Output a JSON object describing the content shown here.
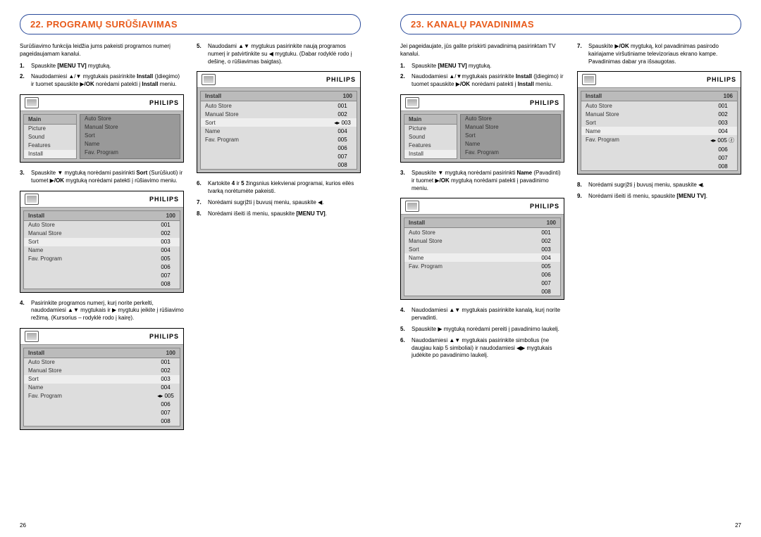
{
  "brand": "PHILIPS",
  "left": {
    "title": "22. PROGRAMŲ SURŪŠIAVIMAS",
    "intro": "Surūšiavimo funkcija leidžia jums pakeisti programos numerį pageidaujamam kanalui.",
    "steps": [
      {
        "n": "1.",
        "t": "Spauskite <b>[MENU TV]</b> mygtuką."
      },
      {
        "n": "2.",
        "t": "Naudodamiesi ▲/▼ mygtukais pasirinkite <b>Install</b> (Įdiegimo) ir tuomet spauskite ▶<b>/OK</b> norėdami patekti į <b>Install</b> meniu."
      },
      {
        "n": "3.",
        "t": "Spauskite ▼ mygtuką norėdami pasirinkti <b>Sort</b> (Surūšiuoti) ir tuomet ▶<b>/OK</b> mygtuką norėdami patekti į rūšiavimo meniu."
      },
      {
        "n": "4.",
        "t": "Pasirinkite programos numerį, kurį norite perkelti, naudodamiesi ▲▼ mygtukais ir ▶ mygtuku įeikite į rūšiavimo režimą. (Kursorius – rodyklė rodo į kairę)."
      },
      {
        "n": "5.",
        "t": "Naudodami ▲▼ mygtukus pasirinkite naują programos numerį ir patvirtinkite su ◀ mygtuku. (Dabar rodyklė rodo į dešinę, o rūšiavimas baigtas)."
      },
      {
        "n": "6.",
        "t": "Kartokite <b>4</b> ir <b>5</b> žingsnius kiekvienai programai, kurios eilės tvarką norėtumėte pakeisti."
      },
      {
        "n": "7.",
        "t": "Norėdami sugrįžti į buvusį meniu, spauskite ◀."
      },
      {
        "n": "8.",
        "t": "Norėdami išeiti iš meniu, spauskite <b>[MENU TV]</b>."
      }
    ],
    "menuA": {
      "header": "Main",
      "ch": "",
      "left": [
        "Picture",
        "Sound",
        "Features",
        "Install"
      ],
      "sel": 3,
      "right": [
        "Auto Store",
        "Manual Store",
        "Sort",
        "Name",
        "Fav. Program"
      ]
    },
    "menuB": {
      "header": "Install",
      "ch": "100",
      "rows": [
        [
          "Auto Store",
          "001"
        ],
        [
          "Manual Store",
          "002"
        ],
        [
          "Sort",
          "003"
        ],
        [
          "Name",
          "004"
        ],
        [
          "Fav. Program",
          "005"
        ],
        [
          "",
          "006"
        ],
        [
          "",
          "007"
        ],
        [
          "",
          "008"
        ]
      ],
      "sel": 2
    },
    "menuC": {
      "header": "Install",
      "ch": "100",
      "rows": [
        [
          "Auto Store",
          "001"
        ],
        [
          "Manual Store",
          "002"
        ],
        [
          "Sort",
          "003"
        ],
        [
          "Name",
          "004"
        ],
        [
          "Fav. Program",
          "◂▸ 005"
        ],
        [
          "",
          "006"
        ],
        [
          "",
          "007"
        ],
        [
          "",
          "008"
        ]
      ],
      "sel": 2
    },
    "menuD": {
      "header": "Install",
      "ch": "100",
      "rows": [
        [
          "Auto Store",
          "001"
        ],
        [
          "Manual Store",
          "002"
        ],
        [
          "Sort",
          "◂▸ 003"
        ],
        [
          "Name",
          "004"
        ],
        [
          "Fav. Program",
          "005"
        ],
        [
          "",
          "006"
        ],
        [
          "",
          "007"
        ],
        [
          "",
          "008"
        ]
      ],
      "sel": 2
    },
    "pageNum": "26"
  },
  "right": {
    "title": "23. KANALŲ PAVADINIMAS",
    "intro": "Jei pageidaujate, jūs galite priskirti pavadinimą pasirinktam TV kanalui.",
    "steps": [
      {
        "n": "1.",
        "t": "Spauskite <b>[MENU TV]</b> mygtuką."
      },
      {
        "n": "2.",
        "t": "Naudodamiesi ▲/▼mygtukais pasirinkite <b>Install</b> (Įdiegimo) ir tuomet spauskite ▶<b>/OK</b> norėdami patekti į <b>Install</b> meniu."
      },
      {
        "n": "3.",
        "t": "Spauskite ▼ mygtuką norėdami pasirinkti <b>Name</b> (Pavadinti) ir tuomet ▶<b>/OK</b> mygtuką norėdami patekti į pavadinimo meniu."
      },
      {
        "n": "4.",
        "t": "Naudodamiesi ▲▼ mygtukais pasirinkite kanalą, kurį norite pervadinti."
      },
      {
        "n": "5.",
        "t": "Spauskite ▶ mygtuką norėdami pereiti į pavadinimo laukelį."
      },
      {
        "n": "6.",
        "t": "Naudodamiesi ▲▼ mygtukais pasirinkite simbolius (ne daugiau kaip 5 simboliai) ir naudodamiesi ◀▶ mygtukais judėkite po pavadinimo laukelį."
      },
      {
        "n": "7.",
        "t": "Spauskite ▶<b>/OK</b> mygtuką, kol pavadinimas pasirodo kairiajame viršutiniame televizoriaus ekrano kampe. Pavadinimas dabar yra išsaugotas."
      },
      {
        "n": "8.",
        "t": "Norėdami sugrįžti į buvusį meniu, spauskite ◀."
      },
      {
        "n": "9.",
        "t": "Norėdami išeiti iš meniu, spauskite <b>[MENU TV]</b>."
      }
    ],
    "menuA": {
      "header": "Main",
      "ch": "",
      "left": [
        "Picture",
        "Sound",
        "Features",
        "Install"
      ],
      "sel": 3,
      "right": [
        "Auto Store",
        "Manual Store",
        "Sort",
        "Name",
        "Fav. Program"
      ]
    },
    "menuB": {
      "header": "Install",
      "ch": "100",
      "rows": [
        [
          "Auto Store",
          "001"
        ],
        [
          "Manual Store",
          "002"
        ],
        [
          "Sort",
          "003"
        ],
        [
          "Name",
          "004"
        ],
        [
          "Fav. Program",
          "005"
        ],
        [
          "",
          "006"
        ],
        [
          "",
          "007"
        ],
        [
          "",
          "008"
        ]
      ],
      "sel": 3
    },
    "menuC": {
      "header": "Install",
      "ch": "106",
      "rows": [
        [
          "Auto Store",
          "001"
        ],
        [
          "Manual Store",
          "002"
        ],
        [
          "Sort",
          "003"
        ],
        [
          "Name",
          "004"
        ],
        [
          "Fav. Program",
          "◂▸ 005 ⓩ"
        ],
        [
          "",
          "006"
        ],
        [
          "",
          "007"
        ],
        [
          "",
          "008"
        ]
      ],
      "sel": 3
    },
    "pageNum": "27"
  }
}
